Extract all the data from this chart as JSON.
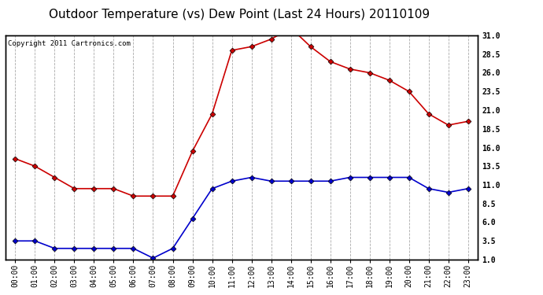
{
  "title": "Outdoor Temperature (vs) Dew Point (Last 24 Hours) 20110109",
  "copyright_text": "Copyright 2011 Cartronics.com",
  "x_labels": [
    "00:00",
    "01:00",
    "02:00",
    "03:00",
    "04:00",
    "05:00",
    "06:00",
    "07:00",
    "08:00",
    "09:00",
    "10:00",
    "11:00",
    "12:00",
    "13:00",
    "14:00",
    "15:00",
    "16:00",
    "17:00",
    "18:00",
    "19:00",
    "20:00",
    "21:00",
    "22:00",
    "23:00"
  ],
  "temp_data": [
    14.5,
    13.5,
    12.0,
    10.5,
    10.5,
    10.5,
    9.5,
    9.5,
    9.5,
    15.5,
    20.5,
    29.0,
    29.5,
    30.5,
    32.0,
    29.5,
    27.5,
    26.5,
    26.0,
    25.0,
    23.5,
    20.5,
    19.0,
    19.5
  ],
  "dew_data": [
    3.5,
    3.5,
    2.5,
    2.5,
    2.5,
    2.5,
    2.5,
    1.2,
    2.5,
    6.5,
    10.5,
    11.5,
    12.0,
    11.5,
    11.5,
    11.5,
    11.5,
    12.0,
    12.0,
    12.0,
    12.0,
    10.5,
    10.0,
    10.5
  ],
  "temp_color": "#cc0000",
  "dew_color": "#0000cc",
  "marker": "D",
  "marker_size": 3.5,
  "line_width": 1.2,
  "y_min": 1.0,
  "y_max": 31.0,
  "y_ticks": [
    1.0,
    3.5,
    6.0,
    8.5,
    11.0,
    13.5,
    16.0,
    18.5,
    21.0,
    23.5,
    26.0,
    28.5,
    31.0
  ],
  "grid_color": "#aaaaaa",
  "background_color": "#ffffff",
  "plot_bg_color": "#ffffff",
  "title_fontsize": 11,
  "tick_fontsize": 7,
  "copyright_fontsize": 6.5
}
